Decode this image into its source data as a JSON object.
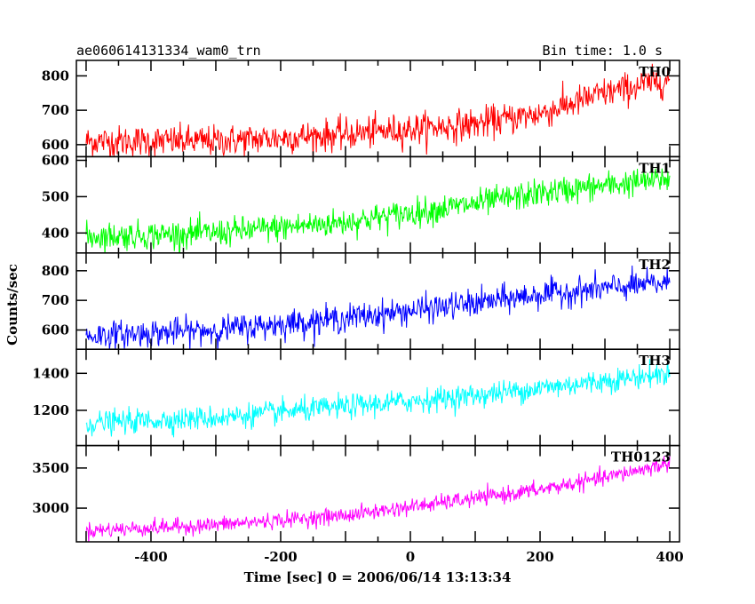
{
  "header": {
    "title": "ae060614131334_wam0_trn",
    "bin_time": "Bin time: 1.0 s"
  },
  "chart_data": {
    "type": "line",
    "ylabel": "Counts/sec",
    "xlabel": "Time [sec] 0 = 2006/06/14 13:13:34",
    "xlim": [
      -515,
      415
    ],
    "x_ticks": [
      -400,
      -200,
      0,
      200,
      400
    ],
    "x_range": [
      -500,
      400
    ],
    "bin_time_s": 1.0,
    "panels": [
      {
        "name": "TH0",
        "color": "#ff0000",
        "ylim": [
          565,
          845
        ],
        "y_ticks": [
          600,
          700,
          800
        ],
        "trend": [
          [
            -500,
            610
          ],
          [
            -300,
            610
          ],
          [
            -100,
            630
          ],
          [
            100,
            660
          ],
          [
            200,
            690
          ],
          [
            300,
            750
          ],
          [
            400,
            790
          ]
        ]
      },
      {
        "name": "TH1",
        "color": "#00ff00",
        "ylim": [
          345,
          610
        ],
        "y_ticks": [
          400,
          500,
          600
        ],
        "trend": [
          [
            -500,
            390
          ],
          [
            -300,
            400
          ],
          [
            -100,
            430
          ],
          [
            100,
            480
          ],
          [
            200,
            510
          ],
          [
            300,
            530
          ],
          [
            400,
            550
          ]
        ]
      },
      {
        "name": "TH2",
        "color": "#0000ff",
        "ylim": [
          535,
          860
        ],
        "y_ticks": [
          600,
          700,
          800
        ],
        "trend": [
          [
            -500,
            580
          ],
          [
            -300,
            600
          ],
          [
            -100,
            640
          ],
          [
            100,
            690
          ],
          [
            200,
            720
          ],
          [
            300,
            740
          ],
          [
            400,
            760
          ]
        ]
      },
      {
        "name": "TH3",
        "color": "#00ffff",
        "ylim": [
          1010,
          1530
        ],
        "y_ticks": [
          1200,
          1400
        ],
        "trend": [
          [
            -500,
            1130
          ],
          [
            -300,
            1160
          ],
          [
            -100,
            1220
          ],
          [
            100,
            1280
          ],
          [
            200,
            1320
          ],
          [
            300,
            1360
          ],
          [
            400,
            1400
          ]
        ]
      },
      {
        "name": "TH0123",
        "color": "#ff00ff",
        "ylim": [
          2580,
          3780
        ],
        "y_ticks": [
          3000,
          3500
        ],
        "trend": [
          [
            -500,
            2720
          ],
          [
            -300,
            2790
          ],
          [
            -100,
            2910
          ],
          [
            100,
            3120
          ],
          [
            200,
            3230
          ],
          [
            300,
            3380
          ],
          [
            400,
            3560
          ]
        ]
      }
    ]
  }
}
